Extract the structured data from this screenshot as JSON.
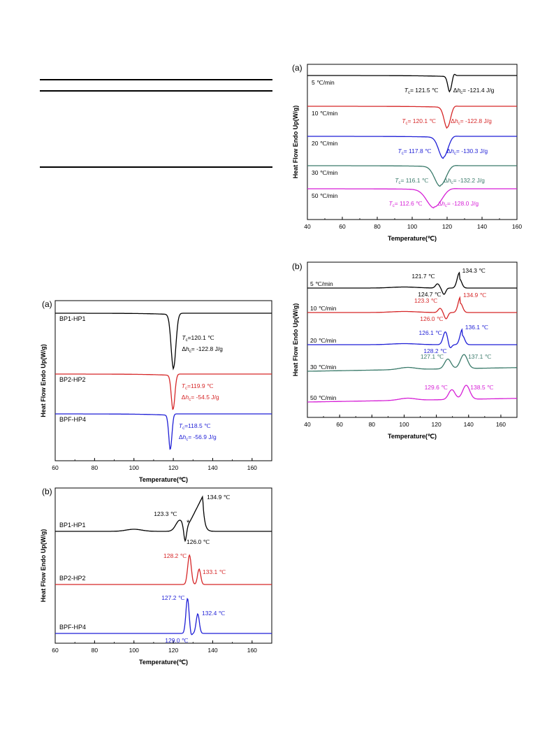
{
  "chart_data": [
    {
      "id": "upper-a",
      "panel_label": "(a)",
      "type": "line",
      "ylabel": "Heat Flow Endo Up(W/g)",
      "xlabel": "Temperature(℃)",
      "xlim": [
        40,
        160
      ],
      "xticks": [
        "40",
        "60",
        "80",
        "100",
        "120",
        "140",
        "160"
      ],
      "series": [
        {
          "name": "5 ℃/min",
          "color": "#000000",
          "peak_x": 121.5,
          "tc": "121.5 ℃",
          "dh": "-121.4 J/g"
        },
        {
          "name": "10 ℃/min",
          "color": "#d62728",
          "peak_x": 120.1,
          "tc": "120.1 ℃",
          "dh": "-122.8 J/g"
        },
        {
          "name": "20 ℃/min",
          "color": "#1f1fd6",
          "peak_x": 117.8,
          "tc": "117.8 ℃",
          "dh": "-130.3 J/g"
        },
        {
          "name": "30 ℃/min",
          "color": "#3a7a6a",
          "peak_x": 116.1,
          "tc": "116.1 ℃",
          "dh": "-132.2 J/g"
        },
        {
          "name": "50 ℃/min",
          "color": "#d61fd6",
          "peak_x": 112.6,
          "tc": "112.6 ℃",
          "dh": "-128.0 J/g"
        }
      ]
    },
    {
      "id": "upper-b",
      "panel_label": "(b)",
      "type": "line",
      "ylabel": "Heat Flow Endo Up(W/g)",
      "xlabel": "Temperature(℃)",
      "xlim": [
        40,
        170
      ],
      "xticks": [
        "40",
        "60",
        "80",
        "100",
        "120",
        "140",
        "160"
      ],
      "series": [
        {
          "name": "5 ℃/min",
          "color": "#000000",
          "peaks": [
            "121.7 ℃",
            "124.7 ℃",
            "134.3 ℃"
          ],
          "peak_x": [
            121.7,
            124.7,
            134.3
          ]
        },
        {
          "name": "10 ℃/min",
          "color": "#d62728",
          "peaks": [
            "123.3 ℃",
            "126.0 ℃",
            "134.9 ℃"
          ],
          "peak_x": [
            123.3,
            126.0,
            134.9
          ]
        },
        {
          "name": "20 ℃/min",
          "color": "#1f1fd6",
          "peaks": [
            "126.1 ℃",
            "128.2 ℃",
            "136.1 ℃"
          ],
          "peak_x": [
            126.1,
            128.2,
            136.1
          ]
        },
        {
          "name": "30 ℃/min",
          "color": "#3a7a6a",
          "peaks": [
            "127.1 ℃",
            "137.1 ℃"
          ],
          "peak_x": [
            127.1,
            137.1
          ]
        },
        {
          "name": "50 ℃/min",
          "color": "#d61fd6",
          "peaks": [
            "129.6 ℃",
            "138.5 ℃"
          ],
          "peak_x": [
            129.6,
            138.5
          ]
        }
      ]
    },
    {
      "id": "lower-a",
      "panel_label": "(a)",
      "type": "line",
      "ylabel": "Heat Flow Endo Up(W/g)",
      "xlabel": "Temperature(℃)",
      "xlim": [
        60,
        170
      ],
      "xticks": [
        "60",
        "80",
        "100",
        "120",
        "140",
        "160"
      ],
      "series": [
        {
          "name": "BP1-HP1",
          "color": "#000000",
          "peak_x": 120.1,
          "tc": "120.1 ℃",
          "dh": "-122.8 J/g"
        },
        {
          "name": "BP2-HP2",
          "color": "#d62728",
          "peak_x": 119.9,
          "tc": "119.9 ℃",
          "dh": "-54.5 J/g"
        },
        {
          "name": "BPF-HP4",
          "color": "#1f1fd6",
          "peak_x": 118.5,
          "tc": "118.5 ℃",
          "dh": "-56.9 J/g"
        }
      ]
    },
    {
      "id": "lower-b",
      "panel_label": "(b)",
      "type": "line",
      "ylabel": "Heat Flow Endo Up(W/g)",
      "xlabel": "Temperature(℃)",
      "xlim": [
        60,
        170
      ],
      "xticks": [
        "60",
        "80",
        "100",
        "120",
        "140",
        "160"
      ],
      "series": [
        {
          "name": "BP1-HP1",
          "color": "#000000",
          "peaks": [
            "123.3 ℃",
            "126.0 ℃",
            "134.9 ℃"
          ],
          "peak_x": [
            123.3,
            126.0,
            134.9
          ],
          "marker": "*"
        },
        {
          "name": "BP2-HP2",
          "color": "#d62728",
          "peaks": [
            "128.2 ℃",
            "133.1 ℃"
          ],
          "peak_x": [
            128.2,
            133.1
          ]
        },
        {
          "name": "BPF-HP4",
          "color": "#1f1fd6",
          "peaks": [
            "127.2 ℃",
            "129.0 ℃",
            "132.4 ℃"
          ],
          "peak_x": [
            127.2,
            129.0,
            132.4
          ]
        }
      ]
    }
  ]
}
